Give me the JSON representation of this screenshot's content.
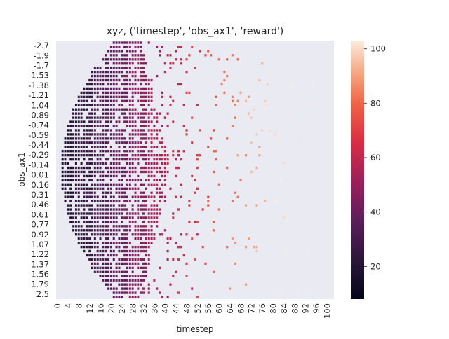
{
  "chart_data": {
    "type": "heatmap",
    "title": "xyz, ('timestep', 'obs_ax1', 'reward')",
    "xlabel": "timestep",
    "ylabel": "obs_ax1",
    "x_tick_labels": [
      "0",
      "4",
      "8",
      "12",
      "16",
      "20",
      "24",
      "28",
      "32",
      "36",
      "40",
      "44",
      "48",
      "52",
      "56",
      "60",
      "64",
      "68",
      "72",
      "76",
      "80",
      "84",
      "88",
      "92",
      "96",
      "100"
    ],
    "y_tick_labels": [
      "-2.7",
      "-1.9",
      "-1.7",
      "-1.53",
      "-1.38",
      "-1.21",
      "-1.04",
      "-0.89",
      "-0.74",
      "-0.59",
      "-0.44",
      "-0.29",
      "-0.14",
      "0.01",
      "0.16",
      "0.31",
      "0.46",
      "0.61",
      "0.77",
      "0.92",
      "1.07",
      "1.22",
      "1.37",
      "1.56",
      "1.79",
      "2.5"
    ],
    "x_range": [
      0,
      103
    ],
    "colorbar": {
      "ticks": [
        20,
        40,
        60,
        80,
        100
      ],
      "range": [
        8,
        103
      ],
      "colormap": "rocket"
    },
    "background_color": "#eaeaf2",
    "grid": false
  }
}
